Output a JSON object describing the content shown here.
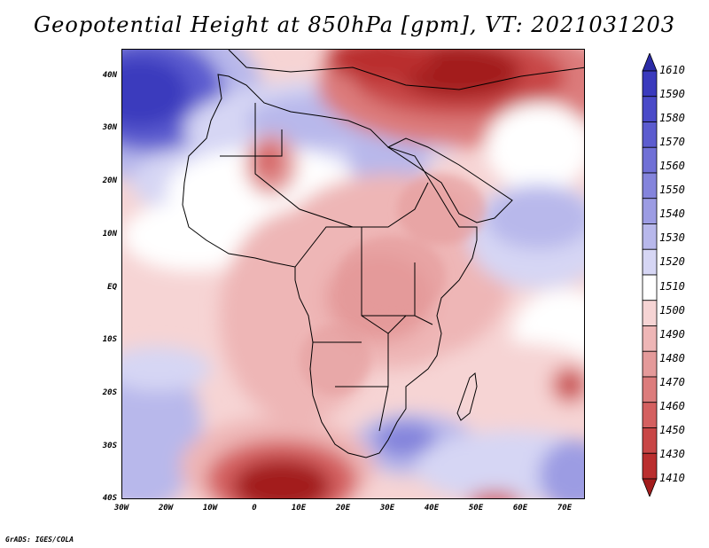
{
  "title": "Geopotential Height at 850hPa [gpm], VT: 2021031203",
  "credit": "GrADS: IGES/COLA",
  "map": {
    "variable": "Geopotential Height",
    "level": "850hPa",
    "units": "gpm",
    "valid_time": "2021031203",
    "lon_range": [
      -30,
      75
    ],
    "lat_range": [
      -40,
      45
    ],
    "lat_labels": [
      "40N",
      "30N",
      "20N",
      "10N",
      "EQ",
      "10S",
      "20S",
      "30S",
      "40S"
    ],
    "lon_labels": [
      "30W",
      "20W",
      "10W",
      "0",
      "10E",
      "20E",
      "30E",
      "40E",
      "50E",
      "60E",
      "70E"
    ]
  },
  "colorbar": {
    "levels": [
      "1610",
      "1590",
      "1580",
      "1570",
      "1560",
      "1550",
      "1540",
      "1530",
      "1520",
      "1510",
      "1500",
      "1490",
      "1480",
      "1470",
      "1460",
      "1450",
      "1430",
      "1410"
    ],
    "colors": [
      "#2b2ba6",
      "#3a3abd",
      "#4a4ac8",
      "#5c5ccf",
      "#7070d6",
      "#8484dc",
      "#9c9ce3",
      "#b8b8eb",
      "#d6d6f4",
      "#ffffff",
      "#f6d4d4",
      "#eeb6b6",
      "#e49a9a",
      "#dc7c7c",
      "#d46060",
      "#c84646",
      "#ba2e2e",
      "#a31c1c"
    ]
  }
}
